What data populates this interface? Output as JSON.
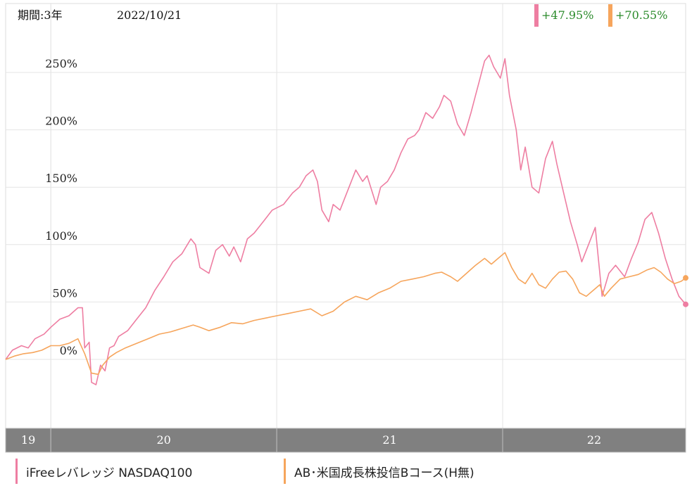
{
  "header": {
    "period_label": "期間:3年",
    "date": "2022/10/21"
  },
  "badges": [
    {
      "text": "+47.95%",
      "color": "#ee7ea2"
    },
    {
      "text": "+70.55%",
      "color": "#f6a55c"
    }
  ],
  "chart_data": {
    "type": "line",
    "title": "",
    "xlabel": "",
    "ylabel": "",
    "ylim": [
      -0.6,
      3.1
    ],
    "yticks": [
      0,
      50,
      100,
      150,
      200,
      250
    ],
    "ytick_labels": [
      "0%",
      "50%",
      "100%",
      "150%",
      "200%",
      "250%"
    ],
    "xlim": [
      2019.8,
      2022.81
    ],
    "period_bands": [
      {
        "label": "19",
        "start": 2019.8,
        "end": 2020.0
      },
      {
        "label": "20",
        "start": 2020.0,
        "end": 2021.0
      },
      {
        "label": "21",
        "start": 2021.0,
        "end": 2022.0
      },
      {
        "label": "22",
        "start": 2022.0,
        "end": 2022.81
      }
    ],
    "grid": true,
    "legend_position": "bottom",
    "series": [
      {
        "name": "iFreeレバレッジ NASDAQ100",
        "color": "#ee7ea2",
        "end_value": "+47.95%",
        "points": [
          [
            2019.8,
            0.0
          ],
          [
            2019.83,
            0.08
          ],
          [
            2019.87,
            0.12
          ],
          [
            2019.9,
            0.1
          ],
          [
            2019.93,
            0.18
          ],
          [
            2019.97,
            0.22
          ],
          [
            2020.0,
            0.28
          ],
          [
            2020.04,
            0.35
          ],
          [
            2020.08,
            0.38
          ],
          [
            2020.12,
            0.45
          ],
          [
            2020.14,
            0.45
          ],
          [
            2020.15,
            0.1
          ],
          [
            2020.17,
            0.15
          ],
          [
            2020.18,
            -0.2
          ],
          [
            2020.2,
            -0.22
          ],
          [
            2020.22,
            -0.05
          ],
          [
            2020.24,
            -0.1
          ],
          [
            2020.26,
            0.1
          ],
          [
            2020.28,
            0.12
          ],
          [
            2020.3,
            0.2
          ],
          [
            2020.34,
            0.25
          ],
          [
            2020.38,
            0.35
          ],
          [
            2020.42,
            0.45
          ],
          [
            2020.46,
            0.6
          ],
          [
            2020.5,
            0.72
          ],
          [
            2020.54,
            0.85
          ],
          [
            2020.58,
            0.92
          ],
          [
            2020.62,
            1.05
          ],
          [
            2020.64,
            1.0
          ],
          [
            2020.66,
            0.8
          ],
          [
            2020.7,
            0.75
          ],
          [
            2020.73,
            0.95
          ],
          [
            2020.76,
            1.0
          ],
          [
            2020.79,
            0.9
          ],
          [
            2020.81,
            0.98
          ],
          [
            2020.84,
            0.85
          ],
          [
            2020.87,
            1.05
          ],
          [
            2020.9,
            1.1
          ],
          [
            2020.94,
            1.2
          ],
          [
            2020.98,
            1.3
          ],
          [
            2021.03,
            1.35
          ],
          [
            2021.07,
            1.45
          ],
          [
            2021.1,
            1.5
          ],
          [
            2021.13,
            1.6
          ],
          [
            2021.16,
            1.65
          ],
          [
            2021.18,
            1.55
          ],
          [
            2021.2,
            1.3
          ],
          [
            2021.23,
            1.2
          ],
          [
            2021.25,
            1.35
          ],
          [
            2021.28,
            1.3
          ],
          [
            2021.32,
            1.5
          ],
          [
            2021.35,
            1.65
          ],
          [
            2021.38,
            1.55
          ],
          [
            2021.4,
            1.6
          ],
          [
            2021.44,
            1.35
          ],
          [
            2021.46,
            1.5
          ],
          [
            2021.49,
            1.55
          ],
          [
            2021.52,
            1.65
          ],
          [
            2021.55,
            1.8
          ],
          [
            2021.58,
            1.92
          ],
          [
            2021.61,
            1.95
          ],
          [
            2021.63,
            2.0
          ],
          [
            2021.66,
            2.15
          ],
          [
            2021.69,
            2.1
          ],
          [
            2021.72,
            2.2
          ],
          [
            2021.74,
            2.3
          ],
          [
            2021.77,
            2.25
          ],
          [
            2021.8,
            2.05
          ],
          [
            2021.83,
            1.95
          ],
          [
            2021.86,
            2.15
          ],
          [
            2021.88,
            2.3
          ],
          [
            2021.9,
            2.45
          ],
          [
            2021.92,
            2.6
          ],
          [
            2021.94,
            2.65
          ],
          [
            2021.96,
            2.55
          ],
          [
            2021.99,
            2.45
          ],
          [
            2022.01,
            2.62
          ],
          [
            2022.03,
            2.3
          ],
          [
            2022.06,
            2.0
          ],
          [
            2022.08,
            1.65
          ],
          [
            2022.1,
            1.85
          ],
          [
            2022.13,
            1.5
          ],
          [
            2022.16,
            1.45
          ],
          [
            2022.19,
            1.75
          ],
          [
            2022.22,
            1.9
          ],
          [
            2022.24,
            1.7
          ],
          [
            2022.27,
            1.45
          ],
          [
            2022.3,
            1.2
          ],
          [
            2022.33,
            1.0
          ],
          [
            2022.35,
            0.85
          ],
          [
            2022.38,
            1.0
          ],
          [
            2022.41,
            1.15
          ],
          [
            2022.44,
            0.55
          ],
          [
            2022.47,
            0.75
          ],
          [
            2022.5,
            0.82
          ],
          [
            2022.54,
            0.72
          ],
          [
            2022.57,
            0.88
          ],
          [
            2022.6,
            1.02
          ],
          [
            2022.63,
            1.22
          ],
          [
            2022.66,
            1.28
          ],
          [
            2022.69,
            1.1
          ],
          [
            2022.72,
            0.88
          ],
          [
            2022.75,
            0.7
          ],
          [
            2022.78,
            0.55
          ],
          [
            2022.81,
            0.48
          ]
        ]
      },
      {
        "name": "AB･米国成長株投信Bコース(H無)",
        "color": "#f6a55c",
        "end_value": "+70.55%",
        "points": [
          [
            2019.8,
            0.0
          ],
          [
            2019.84,
            0.03
          ],
          [
            2019.88,
            0.05
          ],
          [
            2019.92,
            0.06
          ],
          [
            2019.96,
            0.08
          ],
          [
            2020.0,
            0.12
          ],
          [
            2020.04,
            0.12
          ],
          [
            2020.08,
            0.14
          ],
          [
            2020.12,
            0.18
          ],
          [
            2020.15,
            0.05
          ],
          [
            2020.18,
            -0.12
          ],
          [
            2020.21,
            -0.13
          ],
          [
            2020.23,
            -0.05
          ],
          [
            2020.26,
            0.02
          ],
          [
            2020.29,
            0.06
          ],
          [
            2020.33,
            0.1
          ],
          [
            2020.38,
            0.14
          ],
          [
            2020.43,
            0.18
          ],
          [
            2020.48,
            0.22
          ],
          [
            2020.53,
            0.24
          ],
          [
            2020.58,
            0.27
          ],
          [
            2020.63,
            0.3
          ],
          [
            2020.66,
            0.28
          ],
          [
            2020.7,
            0.25
          ],
          [
            2020.75,
            0.28
          ],
          [
            2020.8,
            0.32
          ],
          [
            2020.85,
            0.31
          ],
          [
            2020.9,
            0.34
          ],
          [
            2020.95,
            0.36
          ],
          [
            2021.0,
            0.38
          ],
          [
            2021.05,
            0.4
          ],
          [
            2021.1,
            0.42
          ],
          [
            2021.15,
            0.44
          ],
          [
            2021.2,
            0.38
          ],
          [
            2021.25,
            0.42
          ],
          [
            2021.3,
            0.5
          ],
          [
            2021.35,
            0.55
          ],
          [
            2021.4,
            0.52
          ],
          [
            2021.45,
            0.58
          ],
          [
            2021.5,
            0.62
          ],
          [
            2021.55,
            0.68
          ],
          [
            2021.6,
            0.7
          ],
          [
            2021.65,
            0.72
          ],
          [
            2021.7,
            0.75
          ],
          [
            2021.73,
            0.76
          ],
          [
            2021.77,
            0.72
          ],
          [
            2021.8,
            0.68
          ],
          [
            2021.84,
            0.75
          ],
          [
            2021.88,
            0.82
          ],
          [
            2021.92,
            0.88
          ],
          [
            2021.95,
            0.83
          ],
          [
            2021.98,
            0.88
          ],
          [
            2022.01,
            0.93
          ],
          [
            2022.04,
            0.8
          ],
          [
            2022.07,
            0.7
          ],
          [
            2022.1,
            0.66
          ],
          [
            2022.13,
            0.75
          ],
          [
            2022.16,
            0.65
          ],
          [
            2022.19,
            0.62
          ],
          [
            2022.22,
            0.7
          ],
          [
            2022.25,
            0.76
          ],
          [
            2022.28,
            0.77
          ],
          [
            2022.31,
            0.7
          ],
          [
            2022.34,
            0.58
          ],
          [
            2022.37,
            0.55
          ],
          [
            2022.4,
            0.6
          ],
          [
            2022.43,
            0.65
          ],
          [
            2022.45,
            0.55
          ],
          [
            2022.48,
            0.62
          ],
          [
            2022.52,
            0.7
          ],
          [
            2022.56,
            0.72
          ],
          [
            2022.6,
            0.74
          ],
          [
            2022.64,
            0.78
          ],
          [
            2022.67,
            0.8
          ],
          [
            2022.7,
            0.76
          ],
          [
            2022.73,
            0.7
          ],
          [
            2022.76,
            0.66
          ],
          [
            2022.79,
            0.68
          ],
          [
            2022.81,
            0.71
          ]
        ]
      }
    ]
  }
}
